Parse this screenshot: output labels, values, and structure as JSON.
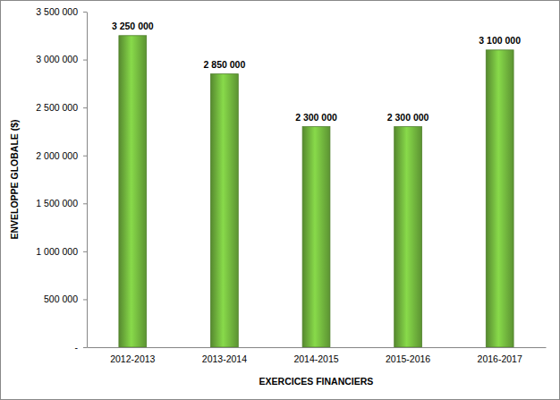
{
  "chart_data": {
    "type": "bar",
    "x_label": "EXERCICES FINANCIERS",
    "y_label": "ENVELOPPE GLOBALE ($)",
    "categories": [
      "2012-2013",
      "2013-2014",
      "2014-2015",
      "2015-2016",
      "2016-2017"
    ],
    "values": [
      3250000,
      2850000,
      2300000,
      2300000,
      3100000
    ],
    "value_labels": [
      "3 250 000",
      "2 850 000",
      "2 300 000",
      "2 300 000",
      "3 100 000"
    ],
    "color": "#6aaa3a",
    "ylim": [
      0,
      3500000
    ],
    "yticks": [
      {
        "value": 0,
        "label": "-"
      },
      {
        "value": 500000,
        "label": "500 000"
      },
      {
        "value": 1000000,
        "label": "1 000 000"
      },
      {
        "value": 1500000,
        "label": "1 500 000"
      },
      {
        "value": 2000000,
        "label": "2 000 000"
      },
      {
        "value": 2500000,
        "label": "2 500 000"
      },
      {
        "value": 3000000,
        "label": "3 000 000"
      },
      {
        "value": 3500000,
        "label": "3 500 000"
      }
    ],
    "grid": false,
    "data_labels": true
  }
}
